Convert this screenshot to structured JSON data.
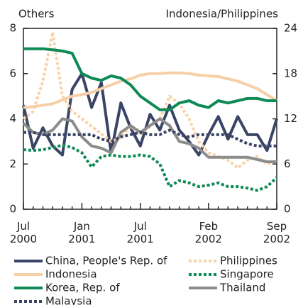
{
  "chart_data": {
    "type": "line",
    "y_label": "Others",
    "y2_label": "Indonesia/Philippines",
    "categories": [
      "Jul 2000",
      null,
      null,
      null,
      null,
      null,
      "Jan 2001",
      null,
      null,
      null,
      null,
      null,
      "Jul 2001",
      null,
      null,
      null,
      null,
      null,
      null,
      "Feb 2002",
      null,
      null,
      null,
      null,
      null,
      null,
      "Sep 2002"
    ],
    "ylim": [
      0,
      8
    ],
    "yticks": [
      0,
      2,
      4,
      6,
      8
    ],
    "y2lim": [
      0,
      24
    ],
    "y2ticks": [
      0,
      6,
      12,
      18,
      24
    ],
    "series": [
      {
        "name": "China, People's Rep. of",
        "color": "#3a4566",
        "style": "solid",
        "values": [
          4.6,
          2.7,
          3.6,
          2.8,
          2.4,
          5.3,
          6.0,
          4.5,
          5.6,
          2.5,
          4.7,
          3.6,
          2.8,
          4.2,
          3.5,
          4.6,
          3.5,
          3.0,
          2.4,
          3.3,
          4.1,
          3.1,
          4.1,
          3.3,
          3.3,
          2.6,
          4.0
        ]
      },
      {
        "name": "Philippines",
        "color": "#f9d3a8",
        "style": "dotted",
        "axis": "y2",
        "values": [
          12,
          13,
          17,
          23.5,
          15,
          13,
          12,
          11,
          10,
          9,
          9.5,
          11,
          10,
          11,
          12,
          15,
          14,
          12,
          9,
          7.5,
          7,
          6.5,
          5.5,
          6.5,
          7,
          6,
          6.5
        ]
      },
      {
        "name": "Indonesia",
        "color": "#f7cfa6",
        "style": "solid",
        "axis": "y2",
        "values": [
          13.5,
          13.6,
          13.8,
          14,
          14.5,
          15,
          15.2,
          15.5,
          16,
          16.5,
          17,
          17.3,
          17.8,
          18,
          18,
          18.1,
          18.1,
          18,
          17.8,
          17.7,
          17.6,
          17.3,
          17,
          16.5,
          16,
          15.2,
          14.4
        ]
      },
      {
        "name": "Singapore",
        "color": "#0e8a55",
        "style": "dotted",
        "axis": "y2",
        "values": [
          7.9,
          7.8,
          7.9,
          8.2,
          8.5,
          8.2,
          7.5,
          5.6,
          7,
          7.2,
          7,
          7,
          7.2,
          7,
          6,
          3,
          3.8,
          3.5,
          3,
          3.2,
          3.5,
          3,
          3,
          2.8,
          2.5,
          3,
          4.2
        ]
      },
      {
        "name": "Korea, Rep. of",
        "color": "#0e8a55",
        "style": "solid",
        "values": [
          7.1,
          7.1,
          7.1,
          7.05,
          7.0,
          6.9,
          6.0,
          5.8,
          5.7,
          5.9,
          5.8,
          5.5,
          5.0,
          4.7,
          4.4,
          4.4,
          4.7,
          4.8,
          4.6,
          4.5,
          4.8,
          4.7,
          4.8,
          4.9,
          4.9,
          4.8,
          4.8
        ]
      },
      {
        "name": "Thailand",
        "color": "#8c8c8c",
        "style": "solid",
        "values": [
          3.8,
          3.4,
          3.3,
          3.5,
          4.0,
          3.9,
          3.2,
          2.8,
          2.7,
          2.5,
          3.4,
          3.7,
          3.4,
          3.7,
          4.0,
          3.7,
          3.0,
          2.9,
          2.7,
          2.3,
          2.3,
          2.3,
          2.3,
          2.3,
          2.2,
          2.1,
          2.1
        ]
      },
      {
        "name": "Malaysia",
        "color": "#3a4566",
        "style": "dotted",
        "values": [
          3.4,
          3.4,
          3.3,
          3.3,
          3.3,
          3.3,
          3.3,
          3.3,
          3.1,
          3.0,
          3.2,
          3.3,
          3.4,
          3.3,
          3.3,
          3.5,
          3.3,
          3.2,
          3.3,
          3.3,
          3.3,
          3.3,
          3.1,
          2.9,
          2.8,
          2.8,
          2.8
        ]
      }
    ]
  }
}
